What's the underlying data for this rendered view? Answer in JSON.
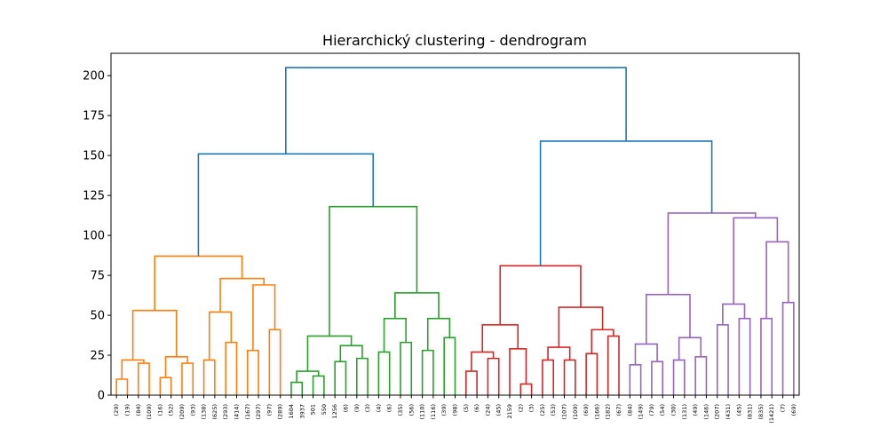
{
  "chart_data": {
    "type": "dendrogram",
    "title": "Hierarchický clustering - dendrogram",
    "xlabel": "",
    "ylabel": "",
    "ylim": [
      0,
      214
    ],
    "yticks": [
      0,
      25,
      50,
      75,
      100,
      125,
      150,
      175,
      200
    ],
    "grid": false,
    "colors": {
      "above_threshold": "#1f77b4",
      "cluster_1": "#ff7f0e",
      "cluster_2": "#2ca02c",
      "cluster_3": "#d62728",
      "cluster_4": "#9467bd"
    },
    "leaf_labels": [
      "(29)",
      "(19)",
      "(84)",
      "(109)",
      "(16)",
      "(52)",
      "(209)",
      "(93)",
      "(138)",
      "(625)",
      "(293)",
      "(414)",
      "(167)",
      "(297)",
      "(97)",
      "(289)",
      "1604",
      "3937",
      "501",
      "550",
      "1256",
      "(6)",
      "(9)",
      "(3)",
      "(4)",
      "(6)",
      "(35)",
      "(56)",
      "(110)",
      "(116)",
      "(39)",
      "(98)",
      "(5)",
      "(6)",
      "(24)",
      "(45)",
      "2159",
      "(2)",
      "(3)",
      "(25)",
      "(53)",
      "(107)",
      "(109)",
      "(69)",
      "(166)",
      "(182)",
      "(67)",
      "(84)",
      "(149)",
      "(79)",
      "(54)",
      "(30)",
      "(131)",
      "(49)",
      "(146)",
      "(207)",
      "(431)",
      "(45)",
      "(831)",
      "(835)",
      "(1421)",
      "(7)",
      "(69)"
    ],
    "merges": [
      {
        "id": "o1",
        "left": 0,
        "right": 1,
        "height": 10,
        "cluster": "cluster_1"
      },
      {
        "id": "o2",
        "left": 2,
        "right": 3,
        "height": 20,
        "cluster": "cluster_1"
      },
      {
        "id": "o3",
        "left": "o1",
        "right": "o2",
        "height": 22,
        "cluster": "cluster_1"
      },
      {
        "id": "o4",
        "left": 4,
        "right": 5,
        "height": 11,
        "cluster": "cluster_1"
      },
      {
        "id": "o5",
        "left": 6,
        "right": 7,
        "height": 20,
        "cluster": "cluster_1"
      },
      {
        "id": "o6",
        "left": "o4",
        "right": "o5",
        "height": 24,
        "cluster": "cluster_1"
      },
      {
        "id": "o7",
        "left": "o3",
        "right": "o6",
        "height": 53,
        "cluster": "cluster_1"
      },
      {
        "id": "o8",
        "left": 8,
        "right": 9,
        "height": 22,
        "cluster": "cluster_1"
      },
      {
        "id": "o9",
        "left": 10,
        "right": 11,
        "height": 33,
        "cluster": "cluster_1"
      },
      {
        "id": "o10",
        "left": "o8",
        "right": "o9",
        "height": 52,
        "cluster": "cluster_1"
      },
      {
        "id": "o11",
        "left": 12,
        "right": 13,
        "height": 28,
        "cluster": "cluster_1"
      },
      {
        "id": "o12",
        "left": 14,
        "right": 15,
        "height": 41,
        "cluster": "cluster_1"
      },
      {
        "id": "o13",
        "left": "o11",
        "right": "o12",
        "height": 69,
        "cluster": "cluster_1"
      },
      {
        "id": "o14",
        "left": "o10",
        "right": "o13",
        "height": 73,
        "cluster": "cluster_1"
      },
      {
        "id": "o15",
        "left": "o7",
        "right": "o14",
        "height": 87,
        "cluster": "cluster_1"
      },
      {
        "id": "g1",
        "left": 16,
        "right": 17,
        "height": 8,
        "cluster": "cluster_2"
      },
      {
        "id": "g2",
        "left": 18,
        "right": 19,
        "height": 12,
        "cluster": "cluster_2"
      },
      {
        "id": "g3",
        "left": "g1",
        "right": "g2",
        "height": 15,
        "cluster": "cluster_2"
      },
      {
        "id": "g4",
        "left": 20,
        "right": 21,
        "height": 21,
        "cluster": "cluster_2"
      },
      {
        "id": "g5",
        "left": 22,
        "right": 23,
        "height": 23,
        "cluster": "cluster_2"
      },
      {
        "id": "g6",
        "left": "g4",
        "right": "g5",
        "height": 31,
        "cluster": "cluster_2"
      },
      {
        "id": "g7",
        "left": "g3",
        "right": "g6",
        "height": 37,
        "cluster": "cluster_2"
      },
      {
        "id": "g8",
        "left": 24,
        "right": 25,
        "height": 27,
        "cluster": "cluster_2"
      },
      {
        "id": "g9",
        "left": 26,
        "right": 27,
        "height": 33,
        "cluster": "cluster_2"
      },
      {
        "id": "g10",
        "left": "g8",
        "right": "g9",
        "height": 48,
        "cluster": "cluster_2"
      },
      {
        "id": "g11",
        "left": 28,
        "right": 29,
        "height": 28,
        "cluster": "cluster_2"
      },
      {
        "id": "g12",
        "left": 30,
        "right": 31,
        "height": 36,
        "cluster": "cluster_2"
      },
      {
        "id": "g13",
        "left": "g11",
        "right": "g12",
        "height": 48,
        "cluster": "cluster_2"
      },
      {
        "id": "g14",
        "left": "g10",
        "right": "g13",
        "height": 64,
        "cluster": "cluster_2"
      },
      {
        "id": "g15",
        "left": "g7",
        "right": "g14",
        "height": 118,
        "cluster": "cluster_2"
      },
      {
        "id": "r1",
        "left": 32,
        "right": 33,
        "height": 15,
        "cluster": "cluster_3"
      },
      {
        "id": "r2",
        "left": 34,
        "right": 35,
        "height": 23,
        "cluster": "cluster_3"
      },
      {
        "id": "r3",
        "left": "r1",
        "right": "r2",
        "height": 27,
        "cluster": "cluster_3"
      },
      {
        "id": "r4",
        "left": 37,
        "right": 38,
        "height": 7,
        "cluster": "cluster_3"
      },
      {
        "id": "r5",
        "left": 36,
        "right": "r4",
        "height": 29,
        "cluster": "cluster_3"
      },
      {
        "id": "r6",
        "left": "r3",
        "right": "r5",
        "height": 44,
        "cluster": "cluster_3"
      },
      {
        "id": "r7",
        "left": 39,
        "right": 40,
        "height": 22,
        "cluster": "cluster_3"
      },
      {
        "id": "r8",
        "left": 41,
        "right": 42,
        "height": 22,
        "cluster": "cluster_3"
      },
      {
        "id": "r9",
        "left": "r7",
        "right": "r8",
        "height": 30,
        "cluster": "cluster_3"
      },
      {
        "id": "r10",
        "left": 43,
        "right": 44,
        "height": 26,
        "cluster": "cluster_3"
      },
      {
        "id": "r11",
        "left": 45,
        "right": 46,
        "height": 37,
        "cluster": "cluster_3"
      },
      {
        "id": "r12",
        "left": "r10",
        "right": "r11",
        "height": 41,
        "cluster": "cluster_3"
      },
      {
        "id": "r13",
        "left": "r9",
        "right": "r12",
        "height": 55,
        "cluster": "cluster_3"
      },
      {
        "id": "r14",
        "left": "r6",
        "right": "r13",
        "height": 81,
        "cluster": "cluster_3"
      },
      {
        "id": "p1",
        "left": 47,
        "right": 48,
        "height": 19,
        "cluster": "cluster_4"
      },
      {
        "id": "p2",
        "left": 49,
        "right": 50,
        "height": 21,
        "cluster": "cluster_4"
      },
      {
        "id": "p3",
        "left": "p1",
        "right": "p2",
        "height": 32,
        "cluster": "cluster_4"
      },
      {
        "id": "p4",
        "left": 51,
        "right": 52,
        "height": 22,
        "cluster": "cluster_4"
      },
      {
        "id": "p5",
        "left": 53,
        "right": 54,
        "height": 24,
        "cluster": "cluster_4"
      },
      {
        "id": "p6",
        "left": "p4",
        "right": "p5",
        "height": 36,
        "cluster": "cluster_4"
      },
      {
        "id": "p7",
        "left": "p3",
        "right": "p6",
        "height": 63,
        "cluster": "cluster_4"
      },
      {
        "id": "p8",
        "left": 55,
        "right": 56,
        "height": 44,
        "cluster": "cluster_4"
      },
      {
        "id": "p9",
        "left": 57,
        "right": 58,
        "height": 48,
        "cluster": "cluster_4"
      },
      {
        "id": "p10",
        "left": "p8",
        "right": "p9",
        "height": 57,
        "cluster": "cluster_4"
      },
      {
        "id": "p11",
        "left": 59,
        "right": 60,
        "height": 48,
        "cluster": "cluster_4"
      },
      {
        "id": "p12",
        "left": 61,
        "right": 62,
        "height": 58,
        "cluster": "cluster_4"
      },
      {
        "id": "p13",
        "left": "p11",
        "right": "p12",
        "height": 96,
        "cluster": "cluster_4"
      },
      {
        "id": "p14",
        "left": "p10",
        "right": "p13",
        "height": 111,
        "cluster": "cluster_4"
      },
      {
        "id": "p15",
        "left": "p7",
        "right": "p14",
        "height": 114,
        "cluster": "cluster_4"
      },
      {
        "id": "b1",
        "left": "o15",
        "right": "g15",
        "height": 151,
        "cluster": "above_threshold"
      },
      {
        "id": "b2",
        "left": "r14",
        "right": "p15",
        "height": 159,
        "cluster": "above_threshold"
      },
      {
        "id": "b3",
        "left": "b1",
        "right": "b2",
        "height": 205,
        "cluster": "above_threshold"
      }
    ]
  }
}
